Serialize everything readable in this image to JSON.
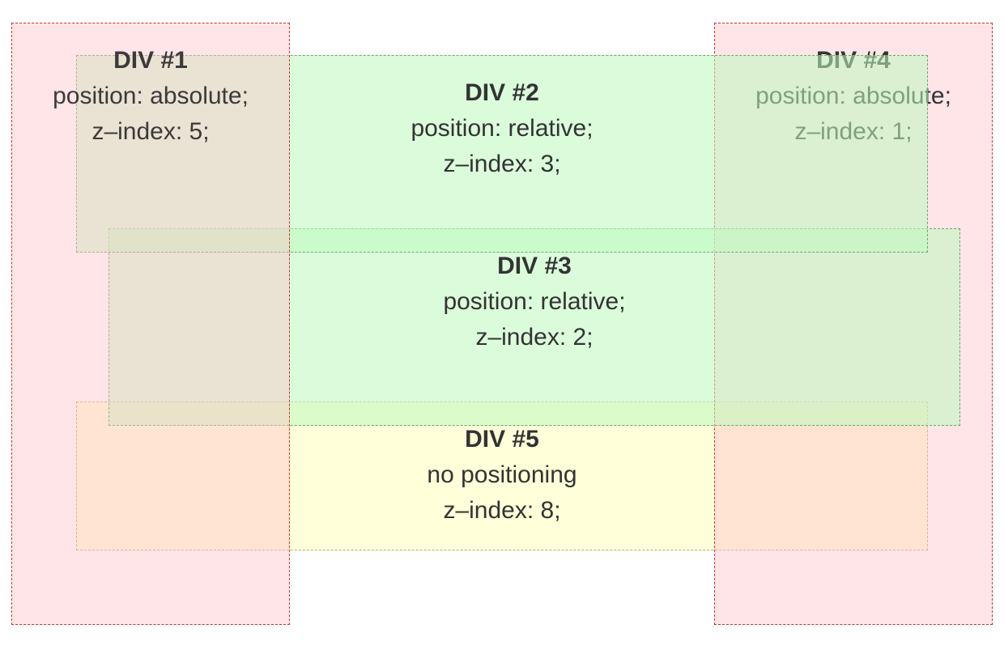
{
  "divs": {
    "div1": {
      "title": "DIV #1",
      "line1": "position: absolute;",
      "line2": "z–index: 5;"
    },
    "div2": {
      "title": "DIV #2",
      "line1": "position: relative;",
      "line2": "z–index: 3;"
    },
    "div3": {
      "title": "DIV #3",
      "line1": "position: relative;",
      "line2": "z–index: 2;"
    },
    "div4": {
      "title": "DIV #4",
      "line1": "position: absolute;",
      "line2": "z–index: 1;"
    },
    "div5": {
      "title": "DIV #5",
      "line1": "no positioning",
      "line2": "z–index: 8;"
    }
  },
  "colors": {
    "absolute_fill": "#ffbec8",
    "absolute_border": "#c0392b",
    "relative_fill": "#befabe",
    "relative_border": "#6aa86a",
    "static_fill": "#ffffcd",
    "text": "#333333"
  }
}
